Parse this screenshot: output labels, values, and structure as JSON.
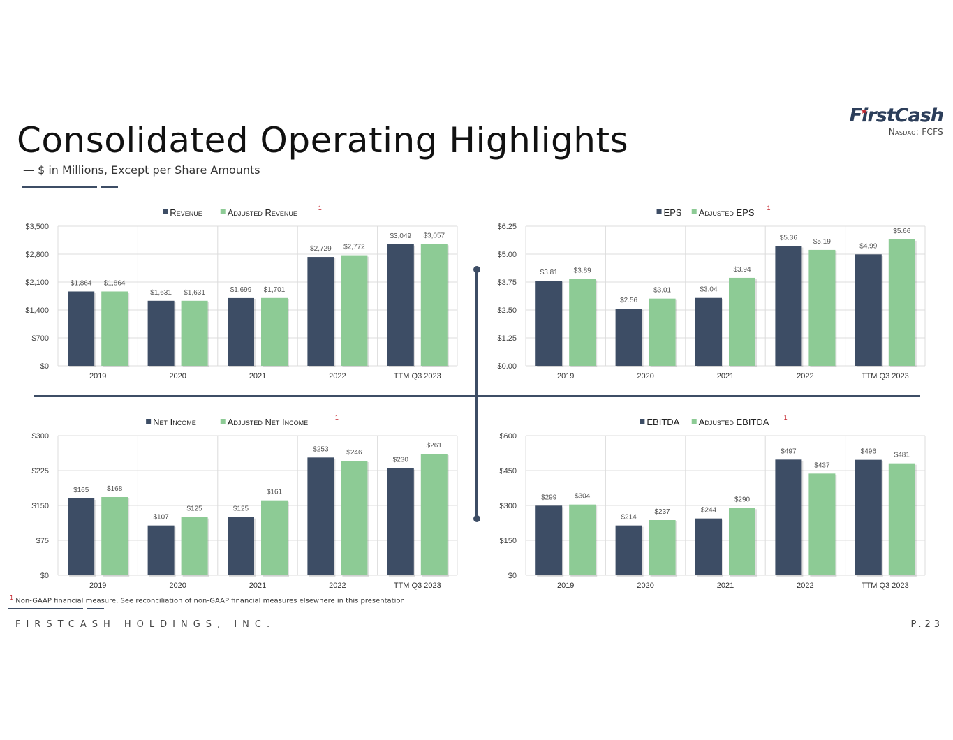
{
  "header": {
    "title": "Consolidated Operating Highlights",
    "subtitle": "— $ in Millions, Except per Share Amounts"
  },
  "logo": {
    "name": "FirstCash",
    "ticker": "Nasdaq: FCFS"
  },
  "colors": {
    "primary_bar": "#3d4d65",
    "adjusted_bar": "#8dcb95",
    "accent_red": "#c4262e",
    "grid": "#dcdcdc"
  },
  "chart_data": [
    {
      "type": "bar",
      "categories": [
        "2019",
        "2020",
        "2021",
        "2022",
        "TTM Q3 2023"
      ],
      "series": [
        {
          "name": "Revenue",
          "values": [
            1864,
            1631,
            1699,
            2729,
            3049
          ],
          "labels": [
            "$1,864",
            "$1,631",
            "$1,699",
            "$2,729",
            "$3,049"
          ]
        },
        {
          "name": "Adjusted Revenue",
          "values": [
            1864,
            1631,
            1701,
            2772,
            3057
          ],
          "labels": [
            "$1,864",
            "$1,631",
            "$1,701",
            "$2,772",
            "$3,057"
          ],
          "footnote_mark": "1"
        }
      ],
      "ylim": [
        0,
        3500
      ],
      "yticks": [
        "$0",
        "$700",
        "$1,400",
        "$2,100",
        "$2,800",
        "$3,500"
      ],
      "grid": true,
      "legend": "top-center"
    },
    {
      "type": "bar",
      "categories": [
        "2019",
        "2020",
        "2021",
        "2022",
        "TTM Q3 2023"
      ],
      "series": [
        {
          "name": "EPS",
          "values": [
            3.81,
            2.56,
            3.04,
            5.36,
            4.99
          ],
          "labels": [
            "$3.81",
            "$2.56",
            "$3.04",
            "$5.36",
            "$4.99"
          ]
        },
        {
          "name": "Adjusted EPS",
          "values": [
            3.89,
            3.01,
            3.94,
            5.19,
            5.66
          ],
          "labels": [
            "$3.89",
            "$3.01",
            "$3.94",
            "$5.19",
            "$5.66"
          ],
          "footnote_mark": "1"
        }
      ],
      "ylim": [
        0,
        6.25
      ],
      "yticks": [
        "$0.00",
        "$1.25",
        "$2.50",
        "$3.75",
        "$5.00",
        "$6.25"
      ],
      "grid": true,
      "legend": "top-center"
    },
    {
      "type": "bar",
      "categories": [
        "2019",
        "2020",
        "2021",
        "2022",
        "TTM Q3 2023"
      ],
      "series": [
        {
          "name": "Net Income",
          "values": [
            165,
            107,
            125,
            253,
            230
          ],
          "labels": [
            "$165",
            "$107",
            "$125",
            "$253",
            "$230"
          ]
        },
        {
          "name": "Adjusted Net Income",
          "values": [
            168,
            125,
            161,
            246,
            261
          ],
          "labels": [
            "$168",
            "$125",
            "$161",
            "$246",
            "$261"
          ],
          "footnote_mark": "1"
        }
      ],
      "ylim": [
        0,
        300
      ],
      "yticks": [
        "$0",
        "$75",
        "$150",
        "$225",
        "$300"
      ],
      "grid": true,
      "legend": "top-center"
    },
    {
      "type": "bar",
      "categories": [
        "2019",
        "2020",
        "2021",
        "2022",
        "TTM Q3 2023"
      ],
      "series": [
        {
          "name": "EBITDA",
          "values": [
            299,
            214,
            244,
            497,
            496
          ],
          "labels": [
            "$299",
            "$214",
            "$244",
            "$497",
            "$496"
          ]
        },
        {
          "name": "Adjusted EBITDA",
          "values": [
            304,
            237,
            290,
            437,
            481
          ],
          "labels": [
            "$304",
            "$237",
            "$290",
            "$437",
            "$481"
          ],
          "footnote_mark": "1"
        }
      ],
      "ylim": [
        0,
        600
      ],
      "yticks": [
        "$0",
        "$150",
        "$300",
        "$450",
        "$600"
      ],
      "grid": true,
      "legend": "top-center"
    }
  ],
  "footnote": {
    "mark": "1",
    "text": "Non-GAAP financial measure. See reconciliation of non-GAAP financial measures elsewhere in this presentation"
  },
  "footer": {
    "company": "FIRSTCASH HOLDINGS, INC.",
    "page": "P.23"
  }
}
